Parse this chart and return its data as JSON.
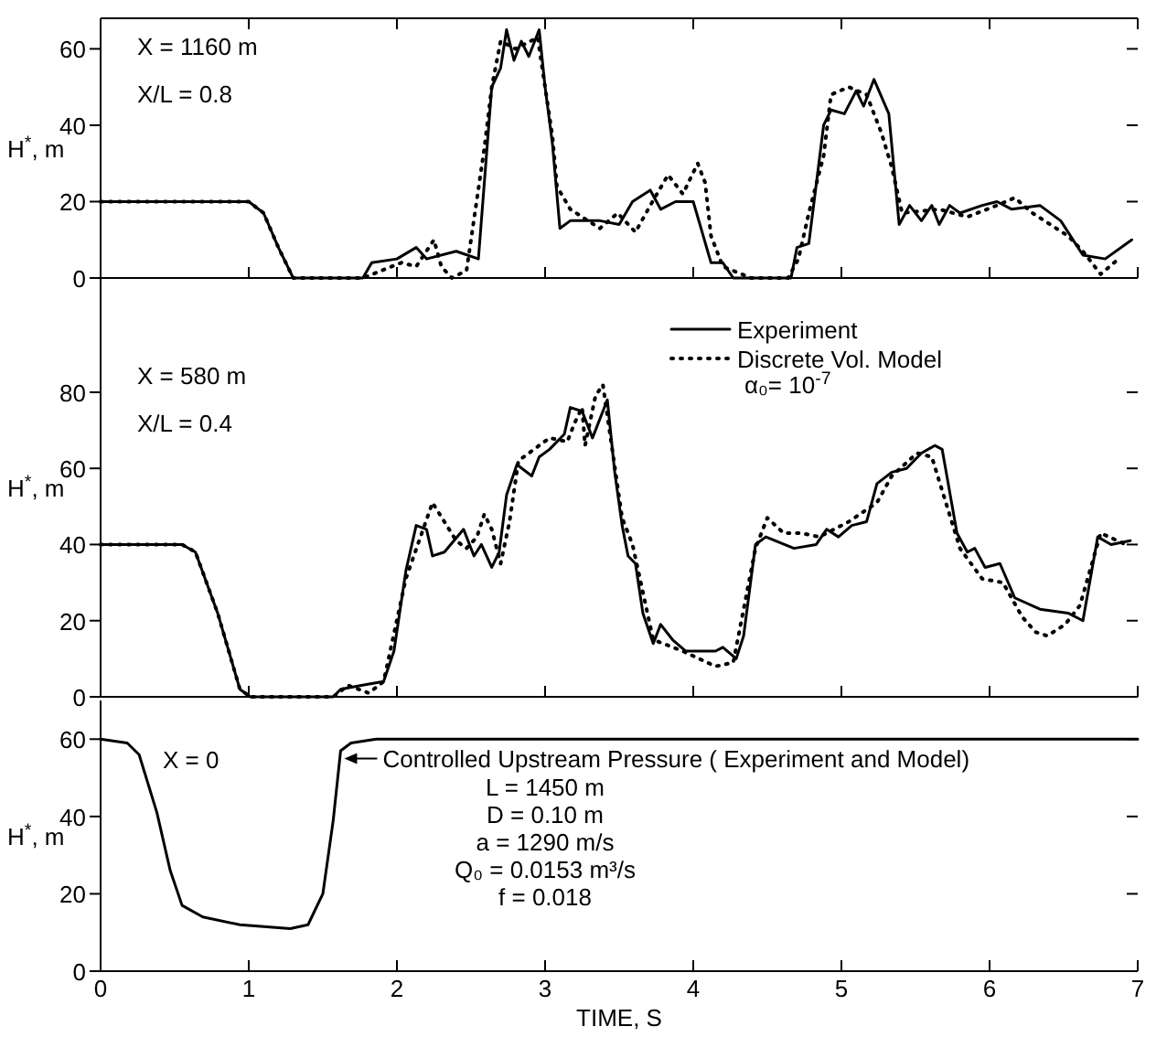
{
  "chart_data": [
    {
      "type": "line",
      "ylabel": "H$^{*}$, m",
      "xlim": [
        0,
        7
      ],
      "xticks": [
        0,
        1,
        2,
        3,
        4,
        5,
        6,
        7
      ],
      "ylim": [
        0,
        68
      ],
      "yticks": [
        0,
        20,
        40,
        60
      ],
      "tick_labels": "y",
      "legend": false,
      "annotations": [
        "X = 1160 m",
        "X/L = 0.8"
      ],
      "series": [
        {
          "color": "#000000",
          "line_style": "solid",
          "x": [
            0,
            1.0,
            1.1,
            1.2,
            1.3,
            1.77,
            1.83,
            2.0,
            2.13,
            2.2,
            2.4,
            2.55,
            2.64,
            2.7,
            2.74,
            2.79,
            2.84,
            2.89,
            2.96,
            3.0,
            3.05,
            3.1,
            3.17,
            3.37,
            3.5,
            3.59,
            3.71,
            3.78,
            3.88,
            4.0,
            4.12,
            4.2,
            4.27,
            4.66,
            4.7,
            4.78,
            4.88,
            4.93,
            5.02,
            5.1,
            5.15,
            5.22,
            5.32,
            5.39,
            5.46,
            5.54,
            5.61,
            5.66,
            5.73,
            5.8,
            5.95,
            6.05,
            6.15,
            6.34,
            6.48,
            6.63,
            6.78,
            6.96
          ],
          "values": [
            20,
            20,
            17,
            8,
            0,
            0,
            4,
            5,
            8,
            5,
            7,
            5,
            50,
            55,
            65,
            57,
            62,
            58,
            65,
            50,
            35,
            13,
            15,
            15,
            14,
            20,
            23,
            18,
            20,
            20,
            4,
            4,
            0,
            0,
            8,
            9,
            40,
            44,
            43,
            49,
            45,
            52,
            43,
            14,
            19,
            15,
            19,
            14,
            19,
            17,
            19,
            20,
            18,
            19,
            15,
            6,
            5,
            10
          ]
        },
        {
          "color": "#000000",
          "line_style": "dotted",
          "x": [
            0,
            1.0,
            1.1,
            1.2,
            1.3,
            1.77,
            2.03,
            2.13,
            2.25,
            2.3,
            2.37,
            2.47,
            2.59,
            2.64,
            2.7,
            2.8,
            2.95,
            3.0,
            3.05,
            3.08,
            3.17,
            3.37,
            3.49,
            3.61,
            3.71,
            3.83,
            3.93,
            4.03,
            4.08,
            4.12,
            4.2,
            4.39,
            4.64,
            4.71,
            4.78,
            4.88,
            4.93,
            5.05,
            5.17,
            5.27,
            5.34,
            5.41,
            5.66,
            5.85,
            6.05,
            6.17,
            6.29,
            6.53,
            6.63,
            6.75,
            6.87
          ],
          "values": [
            20,
            20,
            17,
            8,
            0,
            0,
            4,
            3,
            10,
            3,
            0,
            2,
            34,
            50,
            62,
            60,
            63,
            50,
            37,
            24,
            18,
            13,
            17,
            12,
            19,
            27,
            22,
            30,
            25,
            11,
            3,
            0,
            0,
            5,
            17,
            32,
            48,
            50,
            48,
            38,
            29,
            17,
            18,
            16,
            19,
            21,
            17,
            11,
            7,
            1,
            5
          ]
        }
      ]
    },
    {
      "type": "line",
      "ylabel": "H$^{*}$, m",
      "xlim": [
        0,
        7
      ],
      "xticks": [
        0,
        1,
        2,
        3,
        4,
        5,
        6,
        7
      ],
      "ylim": [
        0,
        110
      ],
      "yticks": [
        0,
        20,
        40,
        60,
        80
      ],
      "tick_labels": "y",
      "legend": "top right",
      "annotations": [
        "X = 580 m",
        "X/L = 0.4",
        "α₀= 10$^{-7}$"
      ],
      "series": [
        {
          "name": "Experiment",
          "color": "#000000",
          "line_style": "solid",
          "x": [
            0,
            0.55,
            0.64,
            0.79,
            0.94,
            1.01,
            1.57,
            1.62,
            1.76,
            1.91,
            1.98,
            2.06,
            2.13,
            2.2,
            2.24,
            2.32,
            2.45,
            2.52,
            2.57,
            2.64,
            2.69,
            2.74,
            2.81,
            2.91,
            2.96,
            3.03,
            3.13,
            3.17,
            3.25,
            3.32,
            3.42,
            3.47,
            3.52,
            3.56,
            3.61,
            3.66,
            3.73,
            3.78,
            3.86,
            3.95,
            4.15,
            4.2,
            4.29,
            4.34,
            4.42,
            4.49,
            4.68,
            4.83,
            4.9,
            4.98,
            5.07,
            5.17,
            5.24,
            5.34,
            5.44,
            5.54,
            5.63,
            5.68,
            5.78,
            5.85,
            5.9,
            5.97,
            6.07,
            6.17,
            6.34,
            6.53,
            6.63,
            6.73,
            6.82,
            6.95
          ],
          "values": [
            40,
            40,
            38,
            22,
            2,
            0,
            0,
            2,
            3,
            4,
            12,
            33,
            45,
            44,
            37,
            38,
            44,
            37,
            40,
            34,
            38,
            53,
            61,
            58,
            63,
            65,
            69,
            76,
            75,
            68,
            78,
            59,
            45,
            37,
            35,
            22,
            14,
            19,
            15,
            12,
            12,
            13,
            10,
            16,
            40,
            42,
            39,
            40,
            44,
            42,
            45,
            46,
            56,
            59,
            60,
            64,
            66,
            65,
            43,
            38,
            39,
            34,
            35,
            26,
            23,
            22,
            20,
            42,
            40,
            41
          ]
        },
        {
          "name": "Discrete Vol. Model",
          "color": "#000000",
          "line_style": "dotted",
          "x": [
            0,
            0.55,
            0.64,
            0.79,
            0.94,
            1.01,
            1.57,
            1.67,
            1.81,
            1.91,
            2.06,
            2.24,
            2.32,
            2.4,
            2.47,
            2.54,
            2.59,
            2.64,
            2.7,
            2.76,
            2.82,
            3.03,
            3.15,
            3.2,
            3.25,
            3.27,
            3.34,
            3.39,
            3.52,
            3.59,
            3.73,
            3.93,
            4.15,
            4.27,
            4.42,
            4.5,
            4.61,
            4.73,
            4.85,
            5.05,
            5.24,
            5.34,
            5.51,
            5.61,
            5.8,
            5.95,
            6.09,
            6.22,
            6.31,
            6.39,
            6.51,
            6.61,
            6.75,
            6.92
          ],
          "values": [
            40,
            40,
            38,
            22,
            2,
            0,
            0,
            3,
            1,
            4,
            31,
            51,
            46,
            41,
            39,
            42,
            48,
            44,
            35,
            46,
            62,
            68,
            67,
            72,
            76,
            66,
            79,
            82,
            47,
            40,
            15,
            12,
            8,
            9,
            39,
            47,
            43,
            43,
            42,
            46,
            51,
            58,
            64,
            63,
            39,
            31,
            30,
            21,
            17,
            16,
            19,
            24,
            43,
            40
          ]
        }
      ]
    },
    {
      "type": "line",
      "xlabel": "TIME, S",
      "ylabel": "H$^{*}$, m",
      "xlim": [
        0,
        7
      ],
      "xticks": [
        0,
        1,
        2,
        3,
        4,
        5,
        6,
        7
      ],
      "ylim": [
        0,
        70
      ],
      "yticks": [
        0,
        20,
        40,
        60
      ],
      "legend": false,
      "annotations": [
        "X = 0",
        {
          "text": "Controlled Upstream Pressure ( Experiment and Model)",
          "x": 1.62,
          "y": 55
        },
        "L = 1450 m",
        "D = 0.10 m",
        "a = 1290 m/s",
        "Q₀ = 0.0153 m³/s",
        "f = 0.018"
      ],
      "series": [
        {
          "color": "#000000",
          "line_style": "solid",
          "x": [
            0,
            0.18,
            0.26,
            0.38,
            0.47,
            0.55,
            0.69,
            0.94,
            1.28,
            1.4,
            1.5,
            1.57,
            1.62,
            1.69,
            1.86,
            7.0
          ],
          "values": [
            60,
            59,
            56,
            41,
            26,
            17,
            14,
            12,
            11,
            12,
            20,
            39,
            57,
            59,
            60,
            60
          ]
        }
      ]
    }
  ]
}
